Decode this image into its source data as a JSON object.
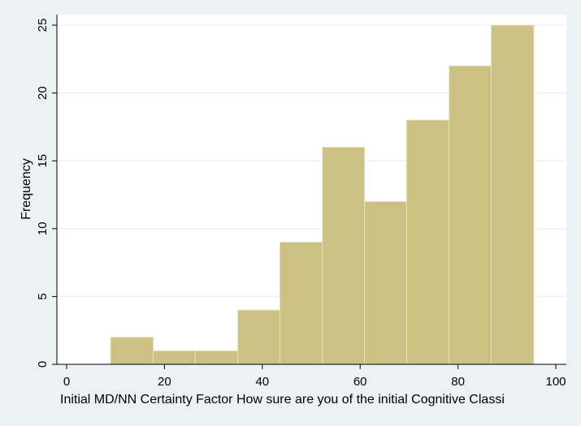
{
  "colors": {
    "background": "#eaf2f3",
    "plot_background": "#ffffff",
    "bar_fill": "#cbc183",
    "bar_edge": "#e6e0bd",
    "grid": "#e6eef0",
    "axis": "#000000"
  },
  "chart_data": {
    "type": "bar",
    "title": "",
    "xlabel": "Initial MD/NN Certainty Factor  How sure are you of the initial Cognitive Classi",
    "ylabel": "Frequency",
    "xlim": [
      0,
      100
    ],
    "ylim": [
      0,
      25
    ],
    "xticks": [
      0,
      20,
      40,
      60,
      80,
      100
    ],
    "yticks": [
      0,
      5,
      10,
      15,
      20,
      25
    ],
    "grid": true,
    "legend": "none",
    "bins": [
      {
        "x0": 9.0,
        "x1": 17.7,
        "value": 2
      },
      {
        "x0": 17.7,
        "x1": 26.3,
        "value": 1
      },
      {
        "x0": 26.3,
        "x1": 35.0,
        "value": 1
      },
      {
        "x0": 35.0,
        "x1": 43.6,
        "value": 4
      },
      {
        "x0": 43.6,
        "x1": 52.3,
        "value": 9
      },
      {
        "x0": 52.3,
        "x1": 60.9,
        "value": 16
      },
      {
        "x0": 60.9,
        "x1": 69.5,
        "value": 12
      },
      {
        "x0": 69.5,
        "x1": 78.2,
        "value": 18
      },
      {
        "x0": 78.2,
        "x1": 86.8,
        "value": 22
      },
      {
        "x0": 86.8,
        "x1": 95.5,
        "value": 25
      }
    ]
  }
}
